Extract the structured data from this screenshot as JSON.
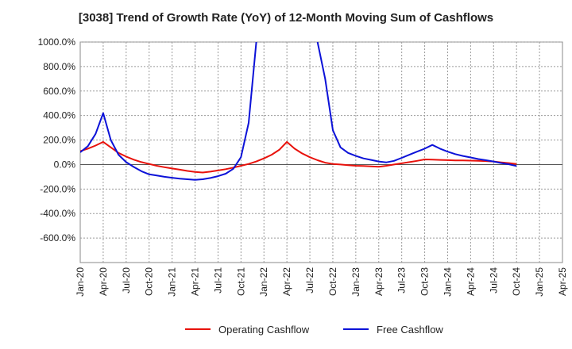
{
  "chart_data": {
    "type": "line",
    "title": "[3038]  Trend of Growth Rate (YoY) of 12-Month Moving Sum of Cashflows",
    "xlabel": "",
    "ylabel": "",
    "ylim": [
      -800,
      1000
    ],
    "yticks": [
      1000,
      800,
      600,
      400,
      200,
      0,
      -200,
      -400,
      -600
    ],
    "ytick_labels": [
      "1000.0%",
      "800.0%",
      "600.0%",
      "400.0%",
      "200.0%",
      "0.0%",
      "-200.0%",
      "-400.0%",
      "-600.0%"
    ],
    "x_tick_labels": [
      "Jan-20",
      "Apr-20",
      "Jul-20",
      "Oct-20",
      "Jan-21",
      "Apr-21",
      "Jul-21",
      "Oct-21",
      "Jan-22",
      "Apr-22",
      "Jul-22",
      "Oct-22",
      "Jan-23",
      "Apr-23",
      "Jul-23",
      "Oct-23",
      "Jan-24",
      "Apr-24",
      "Jul-24",
      "Oct-24",
      "Jan-25",
      "Apr-25"
    ],
    "grid": true,
    "legend_position": "bottom",
    "series": [
      {
        "name": "Operating Cashflow",
        "color": "#e8120c",
        "x": [
          "Jan-20",
          "Feb-20",
          "Mar-20",
          "Apr-20",
          "May-20",
          "Jun-20",
          "Jul-20",
          "Aug-20",
          "Sep-20",
          "Oct-20",
          "Nov-20",
          "Dec-20",
          "Jan-21",
          "Feb-21",
          "Mar-21",
          "Apr-21",
          "May-21",
          "Jun-21",
          "Jul-21",
          "Aug-21",
          "Sep-21",
          "Oct-21",
          "Nov-21",
          "Dec-21",
          "Jan-22",
          "Feb-22",
          "Mar-22",
          "Apr-22",
          "May-22",
          "Jun-22",
          "Jul-22",
          "Aug-22",
          "Sep-22",
          "Oct-22",
          "Nov-22",
          "Dec-22",
          "Jan-23",
          "Feb-23",
          "Mar-23",
          "Apr-23",
          "May-23",
          "Jun-23",
          "Jul-23",
          "Aug-23",
          "Sep-23",
          "Oct-23",
          "Nov-23",
          "Dec-23",
          "Jan-24",
          "Feb-24",
          "Mar-24",
          "Apr-24",
          "May-24",
          "Jun-24",
          "Jul-24",
          "Aug-24",
          "Sep-24",
          "Oct-24"
        ],
        "values": [
          110,
          130,
          155,
          185,
          140,
          95,
          65,
          40,
          20,
          5,
          -10,
          -22,
          -32,
          -42,
          -52,
          -60,
          -65,
          -58,
          -48,
          -38,
          -25,
          -10,
          5,
          25,
          50,
          80,
          120,
          185,
          130,
          90,
          60,
          35,
          15,
          5,
          0,
          -5,
          -10,
          -12,
          -15,
          -18,
          -10,
          0,
          10,
          20,
          30,
          42,
          40,
          38,
          36,
          34,
          33,
          32,
          30,
          28,
          25,
          18,
          12,
          5
        ]
      },
      {
        "name": "Free Cashflow",
        "color": "#0c12d8",
        "x": [
          "Jan-20",
          "Feb-20",
          "Mar-20",
          "Apr-20",
          "May-20",
          "Jun-20",
          "Jul-20",
          "Aug-20",
          "Sep-20",
          "Oct-20",
          "Nov-20",
          "Dec-20",
          "Jan-21",
          "Feb-21",
          "Mar-21",
          "Apr-21",
          "May-21",
          "Jun-21",
          "Jul-21",
          "Aug-21",
          "Sep-21",
          "Oct-21",
          "Nov-21",
          "Dec-21",
          "Jan-22",
          "Feb-22",
          "Mar-22",
          "Apr-22",
          "May-22",
          "Jun-22",
          "Jul-22",
          "Aug-22",
          "Sep-22",
          "Oct-22",
          "Nov-22",
          "Dec-22",
          "Jan-23",
          "Feb-23",
          "Mar-23",
          "Apr-23",
          "May-23",
          "Jun-23",
          "Jul-23",
          "Aug-23",
          "Sep-23",
          "Oct-23",
          "Nov-23",
          "Dec-23",
          "Jan-24",
          "Feb-24",
          "Mar-24",
          "Apr-24",
          "May-24",
          "Jun-24",
          "Jul-24",
          "Aug-24",
          "Sep-24",
          "Oct-24"
        ],
        "values": [
          100,
          150,
          250,
          420,
          200,
          80,
          20,
          -20,
          -55,
          -80,
          -90,
          -100,
          -108,
          -115,
          -120,
          -125,
          -120,
          -110,
          -95,
          -75,
          -35,
          60,
          340,
          1000,
          null,
          null,
          null,
          null,
          null,
          null,
          null,
          1000,
          700,
          280,
          140,
          95,
          70,
          50,
          38,
          25,
          18,
          30,
          55,
          80,
          105,
          130,
          160,
          130,
          105,
          85,
          70,
          58,
          45,
          35,
          25,
          12,
          2,
          -12
        ]
      }
    ]
  }
}
